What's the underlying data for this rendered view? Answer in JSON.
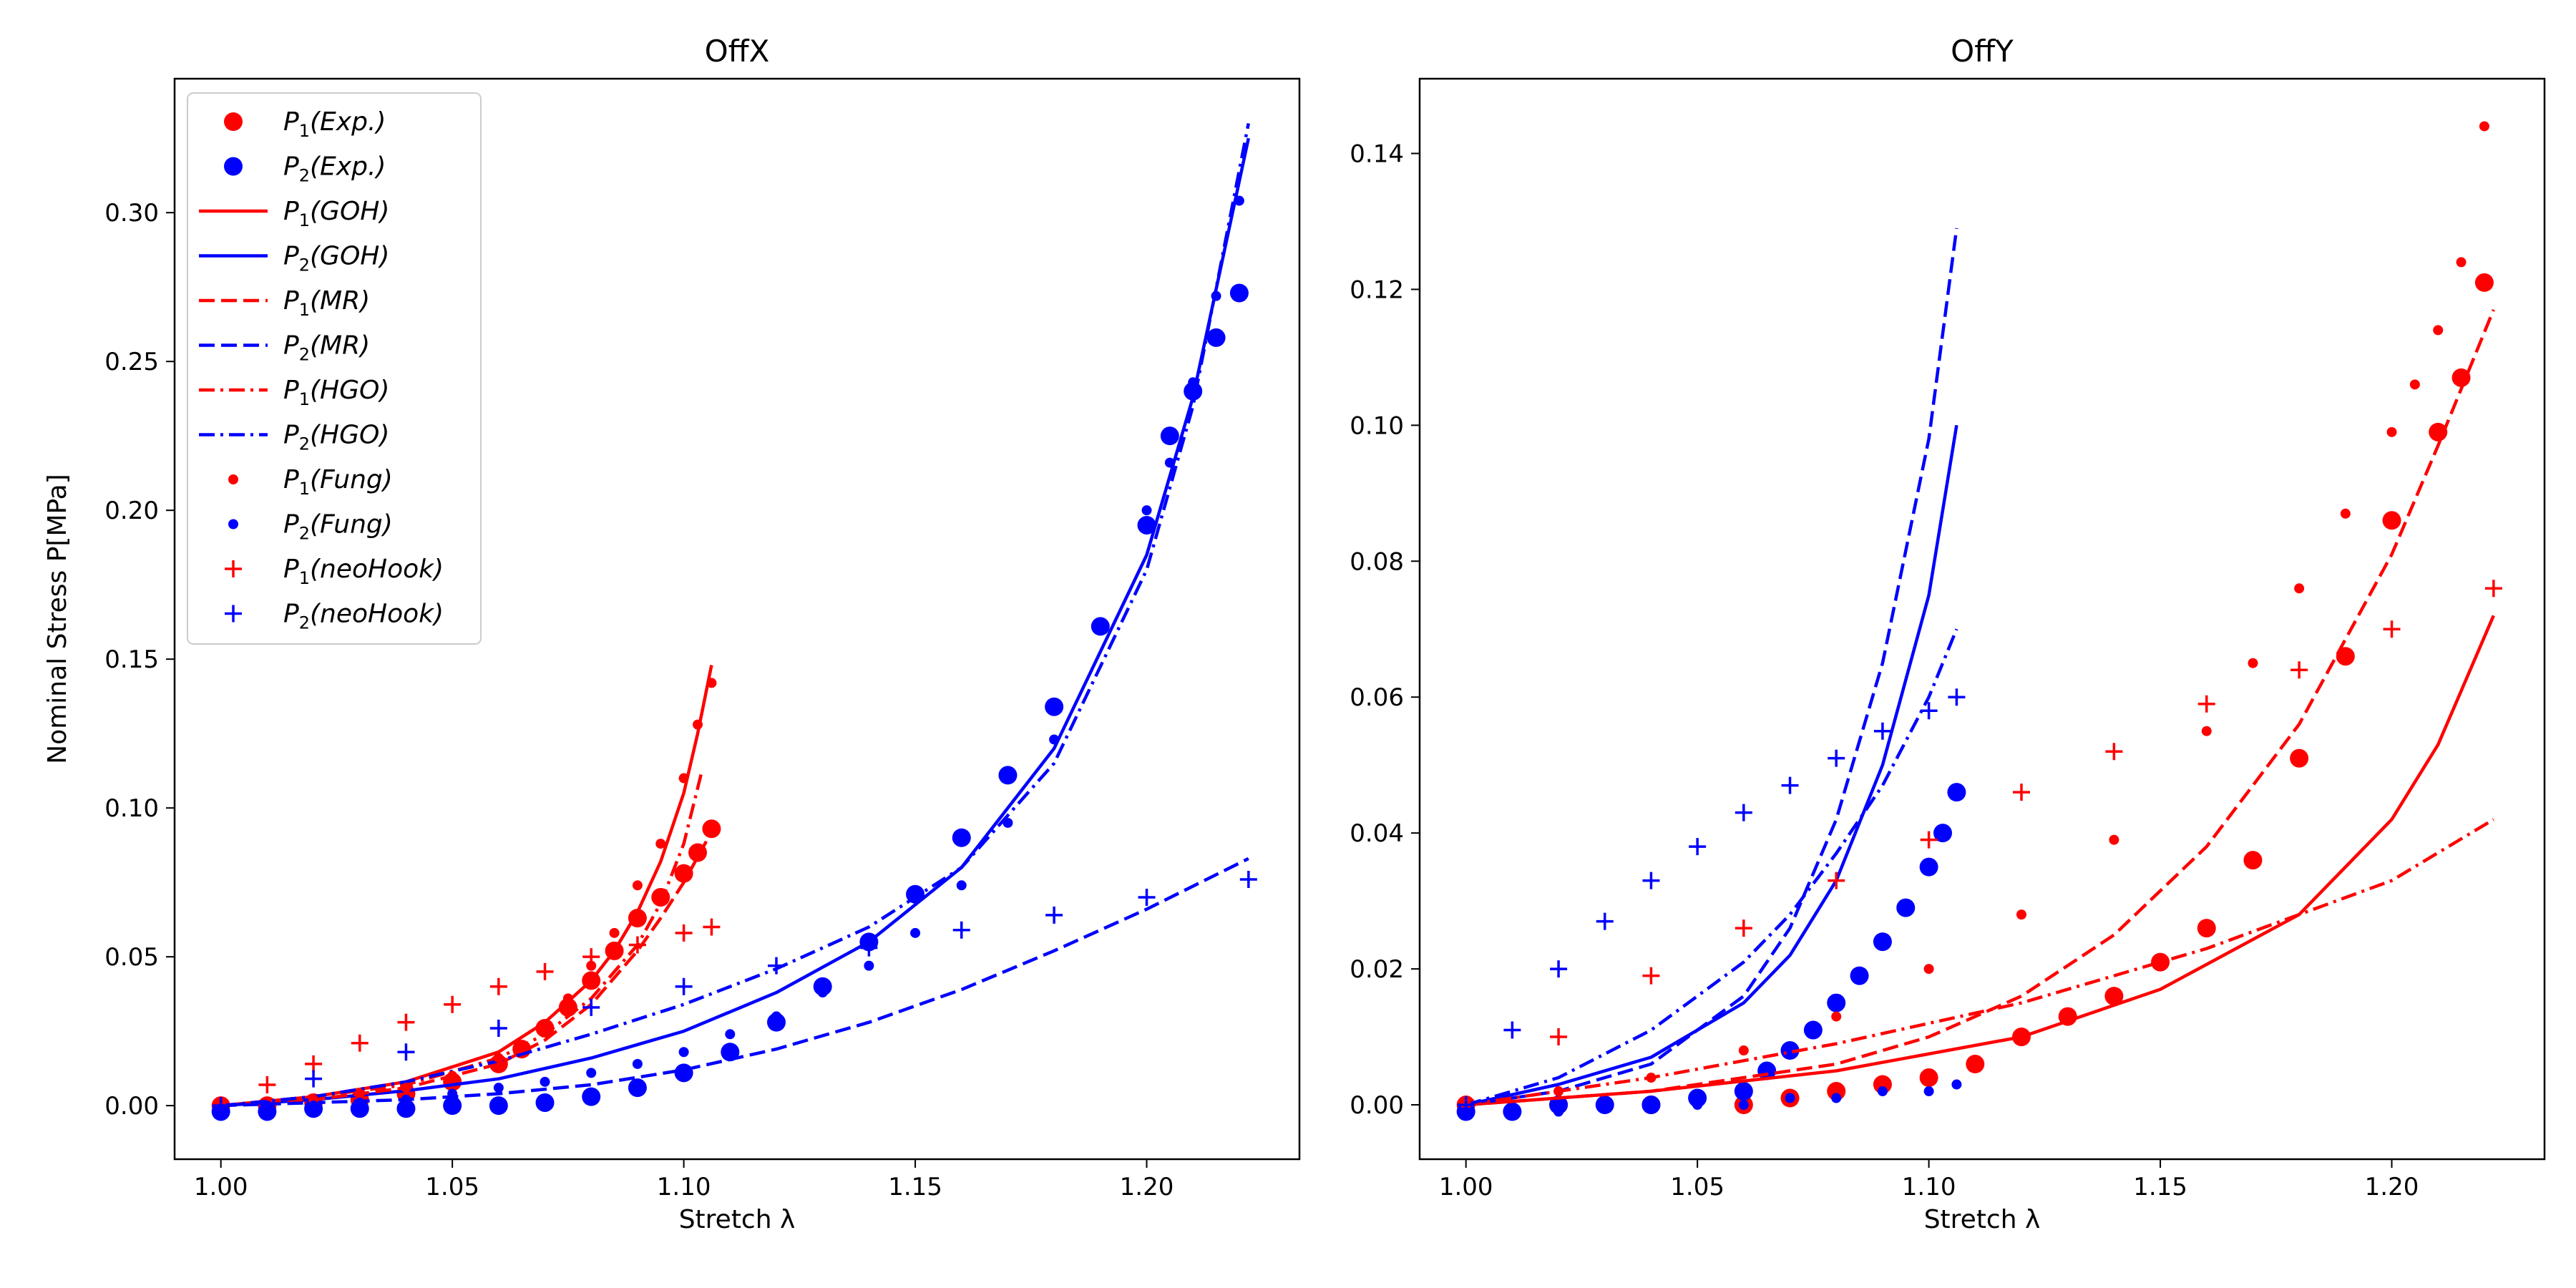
{
  "colors": {
    "p1": "#ff0000",
    "p2": "#0000ff"
  },
  "legend": {
    "placement": "upper-left of first panel",
    "entries": [
      {
        "sym": "P",
        "sub": "1",
        "label": "(Exp.)",
        "color": "#ff0000",
        "marker": "bigdot"
      },
      {
        "sym": "P",
        "sub": "2",
        "label": "(Exp.)",
        "color": "#0000ff",
        "marker": "bigdot"
      },
      {
        "sym": "P",
        "sub": "1",
        "label": "(GOH)",
        "color": "#ff0000",
        "marker": "solid"
      },
      {
        "sym": "P",
        "sub": "2",
        "label": "(GOH)",
        "color": "#0000ff",
        "marker": "solid"
      },
      {
        "sym": "P",
        "sub": "1",
        "label": "(MR)",
        "color": "#ff0000",
        "marker": "dashed"
      },
      {
        "sym": "P",
        "sub": "2",
        "label": "(MR)",
        "color": "#0000ff",
        "marker": "dashed"
      },
      {
        "sym": "P",
        "sub": "1",
        "label": "(HGO)",
        "color": "#ff0000",
        "marker": "dashdot"
      },
      {
        "sym": "P",
        "sub": "2",
        "label": "(HGO)",
        "color": "#0000ff",
        "marker": "dashdot"
      },
      {
        "sym": "P",
        "sub": "1",
        "label": "(Fung)",
        "color": "#ff0000",
        "marker": "smalldot"
      },
      {
        "sym": "P",
        "sub": "2",
        "label": "(Fung)",
        "color": "#0000ff",
        "marker": "smalldot"
      },
      {
        "sym": "P",
        "sub": "1",
        "label": "(neoHook)",
        "color": "#ff0000",
        "marker": "plus"
      },
      {
        "sym": "P",
        "sub": "2",
        "label": "(neoHook)",
        "color": "#0000ff",
        "marker": "plus"
      }
    ]
  },
  "chart_data": [
    {
      "type": "line",
      "title": "OffX",
      "xlabel": "Stretch λ",
      "ylabel": "Nominal Stress P[MPa]",
      "xlim": [
        0.99,
        1.233
      ],
      "ylim": [
        -0.018,
        0.345
      ],
      "xticks": [
        "1.00",
        "1.05",
        "1.10",
        "1.15",
        "1.20"
      ],
      "xtick_values": [
        1.0,
        1.05,
        1.1,
        1.15,
        1.2
      ],
      "yticks": [
        "0.00",
        "0.05",
        "0.10",
        "0.15",
        "0.20",
        "0.25",
        "0.30"
      ],
      "ytick_values": [
        0.0,
        0.05,
        0.1,
        0.15,
        0.2,
        0.25,
        0.3
      ],
      "series": [
        {
          "name": "P1(Exp.)",
          "color": "#ff0000",
          "style": "bigdot",
          "x": [
            1.0,
            1.01,
            1.02,
            1.03,
            1.04,
            1.05,
            1.06,
            1.065,
            1.07,
            1.075,
            1.08,
            1.085,
            1.09,
            1.095,
            1.1,
            1.103,
            1.106
          ],
          "y": [
            0.0,
            0.0,
            0.001,
            0.002,
            0.004,
            0.008,
            0.014,
            0.019,
            0.026,
            0.033,
            0.042,
            0.052,
            0.063,
            0.07,
            0.078,
            0.085,
            0.093
          ]
        },
        {
          "name": "P2(Exp.)",
          "color": "#0000ff",
          "style": "bigdot",
          "x": [
            1.0,
            1.01,
            1.02,
            1.03,
            1.04,
            1.05,
            1.06,
            1.07,
            1.08,
            1.09,
            1.1,
            1.11,
            1.12,
            1.13,
            1.14,
            1.15,
            1.16,
            1.17,
            1.18,
            1.19,
            1.2,
            1.205,
            1.21,
            1.215,
            1.22
          ],
          "y": [
            -0.002,
            -0.002,
            -0.001,
            -0.001,
            -0.001,
            0.0,
            0.0,
            0.001,
            0.003,
            0.006,
            0.011,
            0.018,
            0.028,
            0.04,
            0.055,
            0.071,
            0.09,
            0.111,
            0.134,
            0.161,
            0.195,
            0.225,
            0.24,
            0.258,
            0.273
          ]
        },
        {
          "name": "P1(GOH)",
          "color": "#ff0000",
          "style": "solid",
          "x": [
            1.0,
            1.02,
            1.04,
            1.06,
            1.07,
            1.08,
            1.085,
            1.09,
            1.095,
            1.1,
            1.103,
            1.106
          ],
          "y": [
            0.0,
            0.003,
            0.008,
            0.018,
            0.028,
            0.042,
            0.052,
            0.065,
            0.082,
            0.105,
            0.125,
            0.148
          ]
        },
        {
          "name": "P2(GOH)",
          "color": "#0000ff",
          "style": "solid",
          "x": [
            1.0,
            1.02,
            1.04,
            1.06,
            1.08,
            1.1,
            1.12,
            1.14,
            1.16,
            1.18,
            1.2,
            1.21,
            1.222
          ],
          "y": [
            0.0,
            0.002,
            0.005,
            0.009,
            0.016,
            0.025,
            0.038,
            0.055,
            0.08,
            0.12,
            0.185,
            0.238,
            0.325
          ]
        },
        {
          "name": "P1(MR)",
          "color": "#ff0000",
          "style": "dashed",
          "x": [
            1.0,
            1.02,
            1.04,
            1.06,
            1.07,
            1.08,
            1.09,
            1.095,
            1.1,
            1.106
          ],
          "y": [
            0.0,
            0.002,
            0.006,
            0.014,
            0.022,
            0.034,
            0.052,
            0.063,
            0.075,
            0.092
          ]
        },
        {
          "name": "P2(MR)",
          "color": "#0000ff",
          "style": "dashed",
          "x": [
            1.0,
            1.02,
            1.04,
            1.06,
            1.08,
            1.1,
            1.12,
            1.14,
            1.16,
            1.18,
            1.2,
            1.222
          ],
          "y": [
            0.0,
            0.001,
            0.002,
            0.004,
            0.007,
            0.012,
            0.019,
            0.028,
            0.039,
            0.052,
            0.066,
            0.083
          ]
        },
        {
          "name": "P1(HGO)",
          "color": "#ff0000",
          "style": "dashdot",
          "x": [
            1.0,
            1.02,
            1.04,
            1.06,
            1.07,
            1.08,
            1.09,
            1.095,
            1.1,
            1.104
          ],
          "y": [
            0.0,
            0.003,
            0.007,
            0.016,
            0.024,
            0.036,
            0.054,
            0.068,
            0.088,
            0.113
          ]
        },
        {
          "name": "P2(HGO)",
          "color": "#0000ff",
          "style": "dashdot",
          "x": [
            1.0,
            1.02,
            1.04,
            1.06,
            1.08,
            1.1,
            1.12,
            1.14,
            1.16,
            1.18,
            1.2,
            1.21,
            1.222
          ],
          "y": [
            0.0,
            0.003,
            0.008,
            0.015,
            0.024,
            0.034,
            0.046,
            0.06,
            0.08,
            0.115,
            0.18,
            0.235,
            0.33
          ]
        },
        {
          "name": "P1(Fung)",
          "color": "#ff0000",
          "style": "smalldot",
          "x": [
            1.0,
            1.01,
            1.02,
            1.03,
            1.04,
            1.05,
            1.06,
            1.065,
            1.07,
            1.075,
            1.08,
            1.085,
            1.09,
            1.095,
            1.1,
            1.103,
            1.106
          ],
          "y": [
            0.0,
            0.0,
            0.002,
            0.004,
            0.006,
            0.01,
            0.016,
            0.02,
            0.027,
            0.036,
            0.047,
            0.058,
            0.074,
            0.088,
            0.11,
            0.128,
            0.142
          ]
        },
        {
          "name": "P2(Fung)",
          "color": "#0000ff",
          "style": "smalldot",
          "x": [
            1.0,
            1.01,
            1.02,
            1.03,
            1.04,
            1.05,
            1.06,
            1.07,
            1.08,
            1.09,
            1.1,
            1.11,
            1.12,
            1.13,
            1.14,
            1.15,
            1.16,
            1.17,
            1.18,
            1.19,
            1.2,
            1.205,
            1.21,
            1.215,
            1.22
          ],
          "y": [
            -0.001,
            0.0,
            0.0,
            0.001,
            0.002,
            0.004,
            0.006,
            0.008,
            0.011,
            0.014,
            0.018,
            0.024,
            0.03,
            0.038,
            0.047,
            0.058,
            0.074,
            0.095,
            0.123,
            0.16,
            0.2,
            0.216,
            0.243,
            0.272,
            0.304
          ]
        },
        {
          "name": "P1(neoHook)",
          "color": "#ff0000",
          "style": "plus",
          "x": [
            1.0,
            1.01,
            1.02,
            1.03,
            1.04,
            1.05,
            1.06,
            1.07,
            1.08,
            1.09,
            1.1,
            1.106
          ],
          "y": [
            0.0,
            0.007,
            0.014,
            0.021,
            0.028,
            0.034,
            0.04,
            0.045,
            0.05,
            0.054,
            0.058,
            0.06
          ]
        },
        {
          "name": "P2(neoHook)",
          "color": "#0000ff",
          "style": "plus",
          "x": [
            1.0,
            1.02,
            1.04,
            1.06,
            1.08,
            1.1,
            1.12,
            1.14,
            1.16,
            1.18,
            1.2,
            1.222
          ],
          "y": [
            0.0,
            0.009,
            0.018,
            0.026,
            0.033,
            0.04,
            0.047,
            0.053,
            0.059,
            0.064,
            0.07,
            0.076
          ]
        }
      ]
    },
    {
      "type": "line",
      "title": "OffY",
      "xlabel": "Stretch λ",
      "ylabel": "",
      "xlim": [
        0.99,
        1.233
      ],
      "ylim": [
        -0.008,
        0.151
      ],
      "xticks": [
        "1.00",
        "1.05",
        "1.10",
        "1.15",
        "1.20"
      ],
      "xtick_values": [
        1.0,
        1.05,
        1.1,
        1.15,
        1.2
      ],
      "yticks": [
        "0.00",
        "0.02",
        "0.04",
        "0.06",
        "0.08",
        "0.10",
        "0.12",
        "0.14"
      ],
      "ytick_values": [
        0.0,
        0.02,
        0.04,
        0.06,
        0.08,
        0.1,
        0.12,
        0.14
      ],
      "series": [
        {
          "name": "P1(Exp.)",
          "color": "#ff0000",
          "style": "bigdot",
          "x": [
            1.0,
            1.02,
            1.04,
            1.06,
            1.07,
            1.08,
            1.09,
            1.1,
            1.11,
            1.12,
            1.13,
            1.14,
            1.15,
            1.16,
            1.17,
            1.18,
            1.19,
            1.2,
            1.21,
            1.215,
            1.22
          ],
          "y": [
            0.0,
            0.0,
            0.0,
            0.0,
            0.001,
            0.002,
            0.003,
            0.004,
            0.006,
            0.01,
            0.013,
            0.016,
            0.021,
            0.026,
            0.036,
            0.051,
            0.066,
            0.086,
            0.099,
            0.107,
            0.121
          ]
        },
        {
          "name": "P2(Exp.)",
          "color": "#0000ff",
          "style": "bigdot",
          "x": [
            1.0,
            1.01,
            1.02,
            1.03,
            1.04,
            1.05,
            1.06,
            1.065,
            1.07,
            1.075,
            1.08,
            1.085,
            1.09,
            1.095,
            1.1,
            1.103,
            1.106
          ],
          "y": [
            -0.001,
            -0.001,
            0.0,
            0.0,
            0.0,
            0.001,
            0.002,
            0.005,
            0.008,
            0.011,
            0.015,
            0.019,
            0.024,
            0.029,
            0.035,
            0.04,
            0.046
          ]
        },
        {
          "name": "P1(GOH)",
          "color": "#ff0000",
          "style": "solid",
          "x": [
            1.0,
            1.04,
            1.08,
            1.12,
            1.15,
            1.18,
            1.2,
            1.21,
            1.222
          ],
          "y": [
            0.0,
            0.002,
            0.005,
            0.01,
            0.017,
            0.028,
            0.042,
            0.053,
            0.072
          ]
        },
        {
          "name": "P2(GOH)",
          "color": "#0000ff",
          "style": "solid",
          "x": [
            1.0,
            1.02,
            1.04,
            1.06,
            1.07,
            1.08,
            1.09,
            1.1,
            1.106
          ],
          "y": [
            0.0,
            0.003,
            0.007,
            0.015,
            0.022,
            0.033,
            0.05,
            0.075,
            0.1
          ]
        },
        {
          "name": "P1(MR)",
          "color": "#ff0000",
          "style": "dashed",
          "x": [
            1.0,
            1.04,
            1.08,
            1.1,
            1.12,
            1.14,
            1.16,
            1.18,
            1.2,
            1.21,
            1.222
          ],
          "y": [
            0.0,
            0.002,
            0.006,
            0.01,
            0.016,
            0.025,
            0.038,
            0.056,
            0.081,
            0.097,
            0.117
          ]
        },
        {
          "name": "P2(MR)",
          "color": "#0000ff",
          "style": "dashed",
          "x": [
            1.0,
            1.02,
            1.04,
            1.06,
            1.07,
            1.08,
            1.09,
            1.1,
            1.106
          ],
          "y": [
            0.0,
            0.002,
            0.006,
            0.016,
            0.026,
            0.042,
            0.065,
            0.098,
            0.129
          ]
        },
        {
          "name": "P1(HGO)",
          "color": "#ff0000",
          "style": "dashdot",
          "x": [
            1.0,
            1.04,
            1.08,
            1.12,
            1.16,
            1.2,
            1.222
          ],
          "y": [
            0.0,
            0.004,
            0.009,
            0.015,
            0.023,
            0.033,
            0.042
          ]
        },
        {
          "name": "P2(HGO)",
          "color": "#0000ff",
          "style": "dashdot",
          "x": [
            1.0,
            1.02,
            1.04,
            1.06,
            1.07,
            1.08,
            1.09,
            1.1,
            1.106
          ],
          "y": [
            0.0,
            0.004,
            0.011,
            0.021,
            0.028,
            0.037,
            0.047,
            0.06,
            0.07
          ]
        },
        {
          "name": "P1(Fung)",
          "color": "#ff0000",
          "style": "smalldot",
          "x": [
            1.0,
            1.02,
            1.04,
            1.06,
            1.08,
            1.1,
            1.12,
            1.14,
            1.16,
            1.17,
            1.18,
            1.19,
            1.2,
            1.205,
            1.21,
            1.215,
            1.22
          ],
          "y": [
            0.0,
            0.002,
            0.004,
            0.008,
            0.013,
            0.02,
            0.028,
            0.039,
            0.055,
            0.065,
            0.076,
            0.087,
            0.099,
            0.106,
            0.114,
            0.124,
            0.144
          ]
        },
        {
          "name": "P2(Fung)",
          "color": "#0000ff",
          "style": "smalldot",
          "x": [
            1.0,
            1.01,
            1.02,
            1.03,
            1.04,
            1.05,
            1.06,
            1.07,
            1.08,
            1.09,
            1.1,
            1.106
          ],
          "y": [
            -0.001,
            -0.001,
            -0.001,
            0.0,
            0.0,
            0.0,
            0.0,
            0.001,
            0.001,
            0.002,
            0.002,
            0.003
          ]
        },
        {
          "name": "P1(neoHook)",
          "color": "#ff0000",
          "style": "plus",
          "x": [
            1.0,
            1.02,
            1.04,
            1.06,
            1.08,
            1.1,
            1.12,
            1.14,
            1.16,
            1.18,
            1.2,
            1.222
          ],
          "y": [
            0.0,
            0.01,
            0.019,
            0.026,
            0.033,
            0.039,
            0.046,
            0.052,
            0.059,
            0.064,
            0.07,
            0.076
          ]
        },
        {
          "name": "P2(neoHook)",
          "color": "#0000ff",
          "style": "plus",
          "x": [
            1.0,
            1.01,
            1.02,
            1.03,
            1.04,
            1.05,
            1.06,
            1.07,
            1.08,
            1.09,
            1.1,
            1.106
          ],
          "y": [
            0.0,
            0.011,
            0.02,
            0.027,
            0.033,
            0.038,
            0.043,
            0.047,
            0.051,
            0.055,
            0.058,
            0.06
          ]
        }
      ]
    }
  ]
}
